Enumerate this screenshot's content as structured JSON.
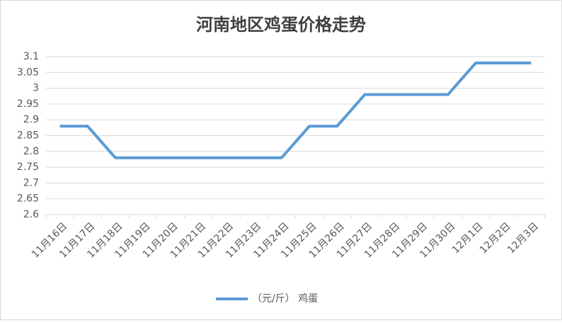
{
  "chart_data": {
    "type": "line",
    "title": "河南地区鸡蛋价格走势",
    "categories": [
      "11月16日",
      "11月17日",
      "11月18日",
      "11月19日",
      "11月20日",
      "11月21日",
      "11月22日",
      "11月23日",
      "11月24日",
      "11月25日",
      "11月26日",
      "11月27日",
      "11月28日",
      "11月29日",
      "11月30日",
      "12月1日",
      "12月2日",
      "12月3日"
    ],
    "series": [
      {
        "name": "（元/斤） 鸡蛋",
        "color": "#5b9bd5",
        "values": [
          2.88,
          2.88,
          2.78,
          2.78,
          2.78,
          2.78,
          2.78,
          2.78,
          2.78,
          2.88,
          2.88,
          2.98,
          2.98,
          2.98,
          2.98,
          3.08,
          3.08,
          3.08
        ]
      }
    ],
    "ylim": [
      2.6,
      3.1
    ],
    "yticks": [
      2.6,
      2.65,
      2.7,
      2.75,
      2.8,
      2.85,
      2.9,
      2.95,
      3,
      3.05,
      3.1
    ],
    "grid": true,
    "legend": "bottom"
  }
}
